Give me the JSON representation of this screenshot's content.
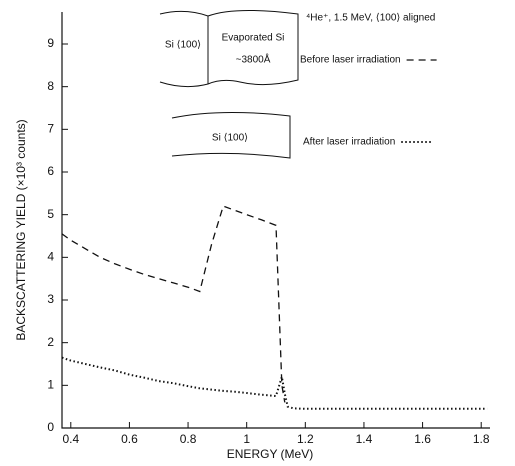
{
  "chart_data": {
    "type": "line",
    "xlabel": "ENERGY (MeV)",
    "ylabel": "BACKSCATTERING YIELD (×10³ counts)",
    "annotations": [
      "⁴He⁺, 1.5 MeV, ⟨100⟩ aligned",
      "Si ⟨100⟩",
      "Evaporated Si",
      "~3800Å",
      "Si ⟨100⟩"
    ],
    "x": [
      0.37,
      0.4,
      0.45,
      0.5,
      0.55,
      0.6,
      0.65,
      0.7,
      0.75,
      0.8,
      0.84,
      0.88,
      0.92,
      0.96,
      1.0,
      1.05,
      1.1,
      1.12,
      1.13,
      1.14,
      1.16,
      1.2,
      1.3,
      1.4,
      1.5,
      1.6,
      1.7,
      1.8,
      1.82
    ],
    "series": [
      {
        "name": "Before laser irradiation",
        "color": "#111111",
        "line_style": "dashed",
        "values": [
          4.55,
          4.4,
          4.2,
          4.0,
          3.85,
          3.72,
          3.6,
          3.5,
          3.4,
          3.3,
          3.2,
          4.3,
          5.2,
          5.1,
          5.0,
          4.88,
          4.75,
          1.0,
          0.6,
          null,
          null,
          null,
          null,
          null,
          null,
          null,
          null,
          null,
          null
        ]
      },
      {
        "name": "After laser irradiation",
        "color": "#111111",
        "line_style": "dotted",
        "values": [
          1.65,
          1.58,
          1.5,
          1.42,
          1.35,
          1.25,
          1.18,
          1.1,
          1.05,
          0.98,
          0.93,
          0.9,
          0.87,
          0.85,
          0.82,
          0.78,
          0.75,
          1.2,
          0.8,
          0.5,
          0.46,
          0.45,
          0.45,
          0.45,
          0.45,
          0.45,
          0.45,
          0.45,
          0.45
        ]
      }
    ],
    "xlim": [
      0.37,
      1.83
    ],
    "xticks": [
      0.4,
      0.6,
      0.8,
      1.0,
      1.2,
      1.4,
      1.6,
      1.8
    ],
    "ylim": [
      0,
      9.75
    ],
    "yticks": [
      0,
      1,
      2,
      3,
      4,
      5,
      6,
      7,
      8,
      9
    ]
  }
}
